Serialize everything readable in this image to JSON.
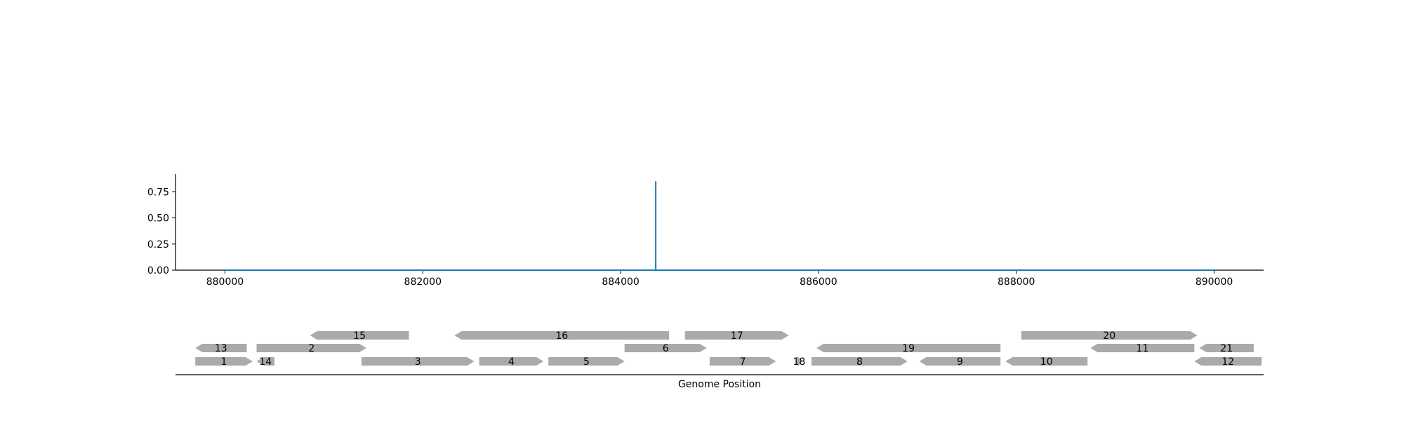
{
  "chart_data": [
    {
      "type": "line",
      "title": "",
      "xlabel": "",
      "ylabel": "",
      "xlim": [
        879500,
        890500
      ],
      "ylim": [
        0,
        0.92
      ],
      "x_ticks": [
        880000,
        882000,
        884000,
        886000,
        888000,
        890000
      ],
      "x_tick_labels": [
        "880000",
        "882000",
        "884000",
        "886000",
        "888000",
        "890000"
      ],
      "y_ticks": [
        0.0,
        0.25,
        0.5,
        0.75
      ],
      "y_tick_labels": [
        "0.00",
        "0.25",
        "0.50",
        "0.75"
      ],
      "grid": false,
      "color": "#1f77b4",
      "series": [
        {
          "x": [
            880000,
            884355,
            884355,
            884355,
            890000
          ],
          "y": [
            0,
            0,
            0.85,
            0,
            0
          ]
        }
      ]
    },
    {
      "type": "gene-map",
      "xlabel": "Genome Position",
      "xlim": [
        879500,
        890500
      ],
      "gene_color": "#aaaaaa",
      "genes": [
        {
          "label": "1",
          "start": 879700,
          "end": 880280,
          "strand": "+",
          "row": 0
        },
        {
          "label": "14",
          "start": 880320,
          "end": 880500,
          "strand": "-",
          "row": 0
        },
        {
          "label": "3",
          "start": 881380,
          "end": 882520,
          "strand": "+",
          "row": 0
        },
        {
          "label": "4",
          "start": 882570,
          "end": 883220,
          "strand": "+",
          "row": 0
        },
        {
          "label": "5",
          "start": 883270,
          "end": 884040,
          "strand": "+",
          "row": 0
        },
        {
          "label": "7",
          "start": 884900,
          "end": 885570,
          "strand": "+",
          "row": 0
        },
        {
          "label": "18",
          "start": 885780,
          "end": 885830,
          "strand": "+",
          "row": 0
        },
        {
          "label": "8",
          "start": 885930,
          "end": 886900,
          "strand": "+",
          "row": 0
        },
        {
          "label": "9",
          "start": 887020,
          "end": 887840,
          "strand": "-",
          "row": 0
        },
        {
          "label": "10",
          "start": 887890,
          "end": 888720,
          "strand": "-",
          "row": 0
        },
        {
          "label": "12",
          "start": 889800,
          "end": 890480,
          "strand": "-",
          "row": 0
        },
        {
          "label": "13",
          "start": 879700,
          "end": 880220,
          "strand": "-",
          "row": 1
        },
        {
          "label": "2",
          "start": 880320,
          "end": 881430,
          "strand": "+",
          "row": 1
        },
        {
          "label": "6",
          "start": 884040,
          "end": 884870,
          "strand": "+",
          "row": 1
        },
        {
          "label": "19",
          "start": 885980,
          "end": 887840,
          "strand": "-",
          "row": 1
        },
        {
          "label": "11",
          "start": 888750,
          "end": 889800,
          "strand": "-",
          "row": 1
        },
        {
          "label": "21",
          "start": 889850,
          "end": 890400,
          "strand": "-",
          "row": 1
        },
        {
          "label": "15",
          "start": 880860,
          "end": 881860,
          "strand": "-",
          "row": 2
        },
        {
          "label": "16",
          "start": 882320,
          "end": 884490,
          "strand": "-",
          "row": 2
        },
        {
          "label": "17",
          "start": 884650,
          "end": 885700,
          "strand": "+",
          "row": 2
        },
        {
          "label": "20",
          "start": 888050,
          "end": 889830,
          "strand": "+",
          "row": 2
        }
      ]
    }
  ]
}
